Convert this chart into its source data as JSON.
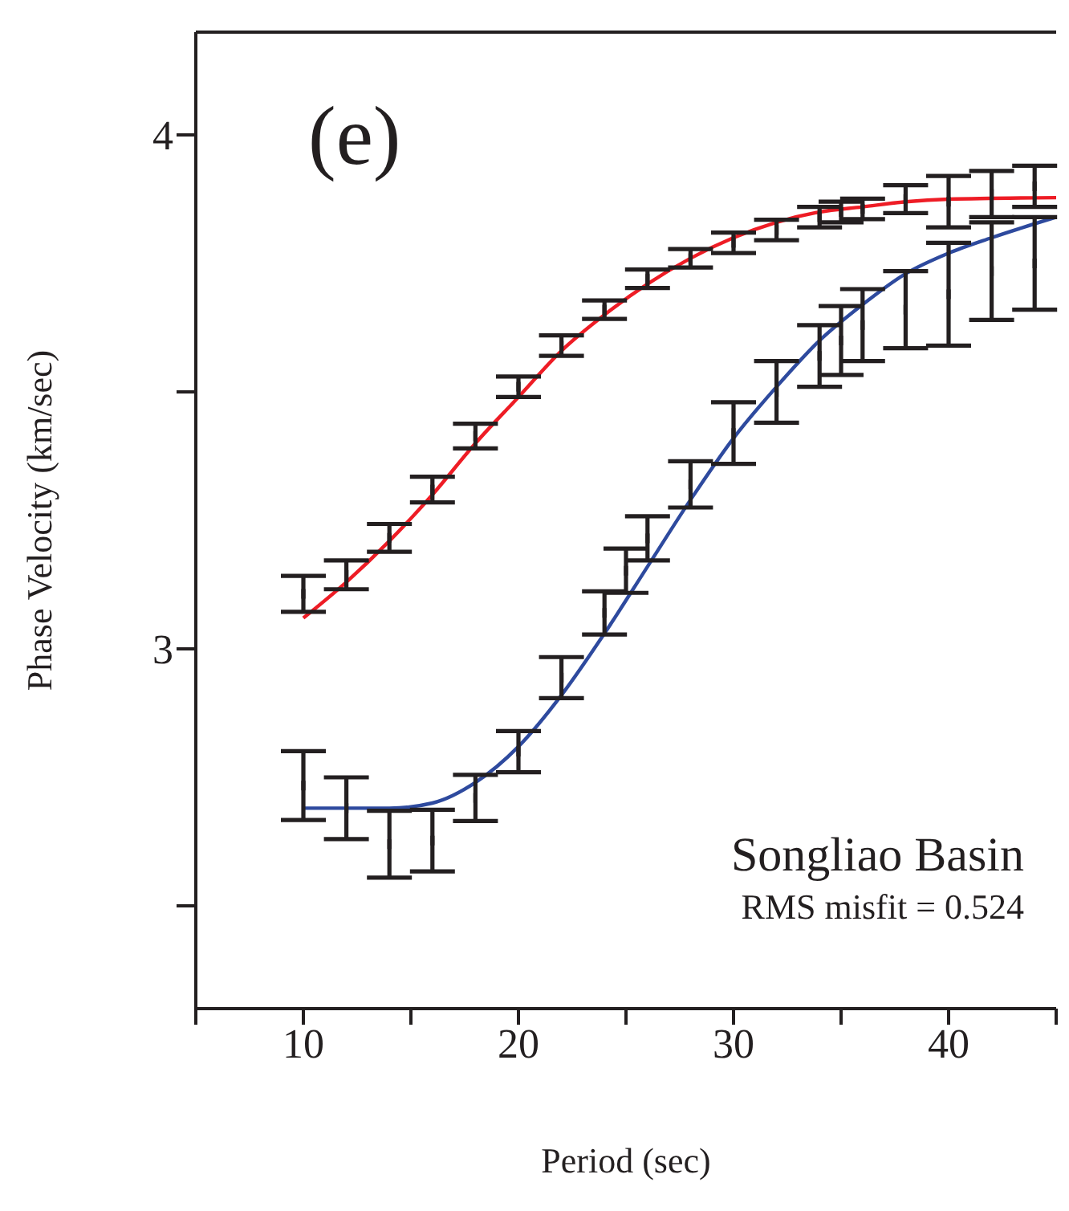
{
  "chart_data": {
    "type": "line",
    "xlabel": "Period (sec)",
    "ylabel": "Phase Velocity (km/sec)",
    "xlim": [
      5,
      45
    ],
    "xticks": [
      {
        "value": 5,
        "label": null
      },
      10,
      {
        "value": 15,
        "label": null
      },
      20,
      {
        "value": 25,
        "label": null
      },
      30,
      {
        "value": 35,
        "label": null
      },
      40,
      {
        "value": 45,
        "label": null
      }
    ],
    "ylim": [
      2.3,
      4.2
    ],
    "yticks": [
      {
        "value": 2.5,
        "label": null
      },
      3,
      {
        "value": 3.5,
        "label": null
      },
      4
    ],
    "grid": false,
    "series": [
      {
        "color": "#ee1c25",
        "x": [
          10,
          12,
          14,
          16,
          18,
          20,
          22,
          24,
          26,
          28,
          30,
          32,
          34,
          36,
          38,
          40,
          45
        ],
        "values": [
          3.06,
          3.13,
          3.21,
          3.3,
          3.4,
          3.49,
          3.58,
          3.65,
          3.71,
          3.76,
          3.8,
          3.83,
          3.85,
          3.86,
          3.87,
          3.875,
          3.878
        ]
      },
      {
        "color": "#2e4a9e",
        "x": [
          10,
          12,
          14,
          16,
          18,
          20,
          22,
          24,
          26,
          28,
          30,
          32,
          34,
          36,
          38,
          40,
          42,
          45
        ],
        "values": [
          2.69,
          2.69,
          2.69,
          2.7,
          2.74,
          2.81,
          2.91,
          3.03,
          3.16,
          3.29,
          3.41,
          3.51,
          3.6,
          3.67,
          3.73,
          3.77,
          3.8,
          3.84
        ]
      },
      {
        "type": "scatter",
        "color": "#231f20",
        "x": [
          10,
          12,
          14,
          16,
          18,
          20,
          22,
          24,
          26,
          28,
          30,
          32,
          34,
          35,
          36,
          38,
          40,
          42,
          44
        ],
        "values": [
          3.107,
          3.144,
          3.216,
          3.31,
          3.414,
          3.51,
          3.59,
          3.66,
          3.72,
          3.76,
          3.79,
          3.815,
          3.84,
          3.85,
          3.856,
          3.875,
          3.87,
          3.885,
          3.9
        ],
        "errors": [
          0.035,
          0.028,
          0.027,
          0.025,
          0.024,
          0.02,
          0.02,
          0.018,
          0.018,
          0.018,
          0.02,
          0.02,
          0.02,
          0.02,
          0.02,
          0.027,
          0.05,
          0.045,
          0.04
        ]
      },
      {
        "type": "scatter",
        "color": "#231f20",
        "x": [
          10,
          12,
          14,
          16,
          18,
          20,
          22,
          24,
          25,
          26,
          28,
          30,
          32,
          34,
          35,
          36,
          38,
          40,
          42,
          44
        ],
        "values": [
          2.734,
          2.69,
          2.62,
          2.627,
          2.71,
          2.8,
          2.944,
          3.07,
          3.152,
          3.215,
          3.32,
          3.42,
          3.5,
          3.57,
          3.6,
          3.63,
          3.66,
          3.69,
          3.735,
          3.75
        ],
        "errors": [
          0.067,
          0.06,
          0.065,
          0.06,
          0.045,
          0.04,
          0.04,
          0.042,
          0.043,
          0.043,
          0.045,
          0.06,
          0.06,
          0.06,
          0.067,
          0.07,
          0.075,
          0.1,
          0.095,
          0.09
        ]
      }
    ],
    "annotations": [
      "(e)",
      "Songliao Basin",
      "RMS misfit = 0.524"
    ]
  }
}
